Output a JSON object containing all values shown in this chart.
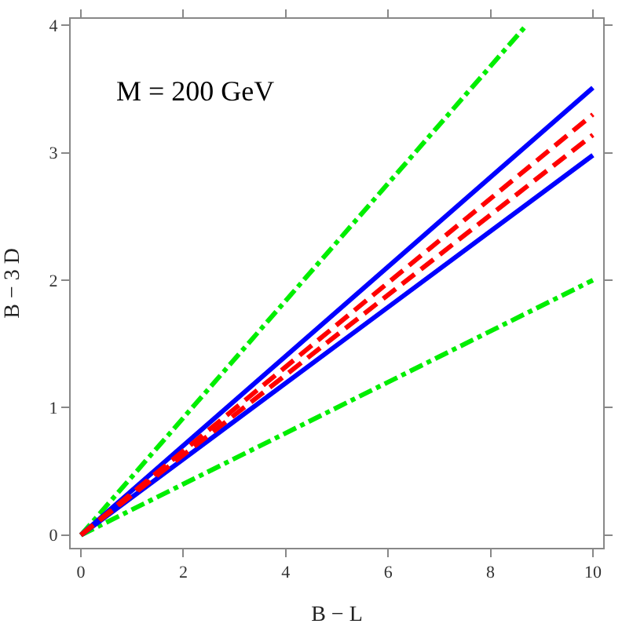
{
  "chart_data": {
    "type": "line",
    "xlabel": "B − L",
    "ylabel": "B − 3 D",
    "xlim": [
      -0.2,
      10.2
    ],
    "ylim": [
      -0.1,
      4.05
    ],
    "xticks": [
      0,
      2,
      4,
      6,
      8,
      10
    ],
    "yticks": [
      0,
      1,
      2,
      3,
      4
    ],
    "marker": "none",
    "annotations": [
      "M = 200 GeV"
    ],
    "series": [
      {
        "x": [
          0,
          8.7
        ],
        "values": [
          0,
          4
        ],
        "color": "#00ee00",
        "line_style": "dashdot"
      },
      {
        "x": [
          0,
          10
        ],
        "values": [
          0,
          2
        ],
        "color": "#00ee00",
        "line_style": "dashdot"
      },
      {
        "x": [
          0,
          10
        ],
        "values": [
          0,
          3.51
        ],
        "color": "#0000ff",
        "line_style": "solid"
      },
      {
        "x": [
          0,
          10
        ],
        "values": [
          0,
          2.98
        ],
        "color": "#0000ff",
        "line_style": "solid"
      },
      {
        "x": [
          0,
          10
        ],
        "values": [
          0,
          3.3
        ],
        "color": "#ff0000",
        "line_style": "dashed"
      },
      {
        "x": [
          0,
          10
        ],
        "values": [
          0,
          3.14
        ],
        "color": "#ff0000",
        "line_style": "dashed"
      }
    ]
  }
}
